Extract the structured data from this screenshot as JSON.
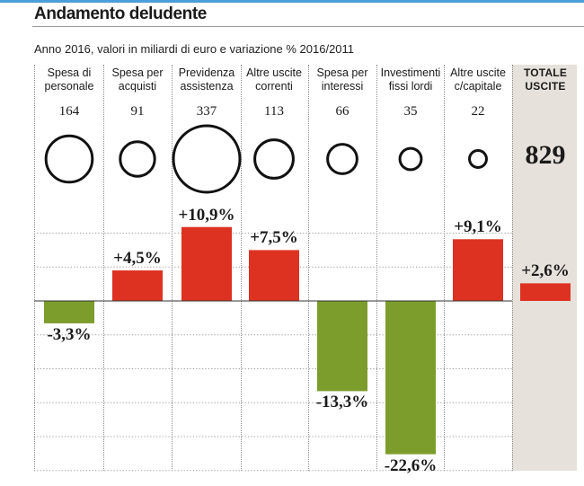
{
  "title": "Andamento deludente",
  "subtitle": "Anno 2016, valori in miliardi di euro e variazione % 2016/2011",
  "colors": {
    "positive": "#dd3222",
    "negative": "#7c9d2b",
    "total_bg": "#e6e1da",
    "accent_rule": "#4a9fd8"
  },
  "chart_data": {
    "type": "bar",
    "categories": [
      "Spesa di personale",
      "Spesa per acquisti",
      "Previdenza assistenza",
      "Altre uscite correnti",
      "Spesa per interessi",
      "Investimenti fissi lordi",
      "Altre uscite c/capitale",
      "TOTALE USCITE"
    ],
    "category_lines": [
      [
        "Spesa di",
        "personale"
      ],
      [
        "Spesa per",
        "acquisti"
      ],
      [
        "Previdenza",
        "assistenza"
      ],
      [
        "Altre uscite",
        "correnti"
      ],
      [
        "Spesa per",
        "interessi"
      ],
      [
        "Investimenti",
        "fissi lordi"
      ],
      [
        "Altre uscite",
        "c/capitale"
      ],
      [
        "TOTALE",
        "USCITE"
      ]
    ],
    "amounts": [
      164,
      91,
      337,
      113,
      66,
      35,
      22,
      829
    ],
    "values": [
      -3.3,
      4.5,
      10.9,
      7.5,
      -13.3,
      -22.6,
      9.1,
      2.6
    ],
    "value_labels": [
      "-3,3%",
      "+4,5%",
      "+10,9%",
      "+7,5%",
      "-13,3%",
      "-22,6%",
      "+9,1%",
      "+2,6%"
    ],
    "ylim": [
      -25,
      11
    ],
    "grid": true
  }
}
